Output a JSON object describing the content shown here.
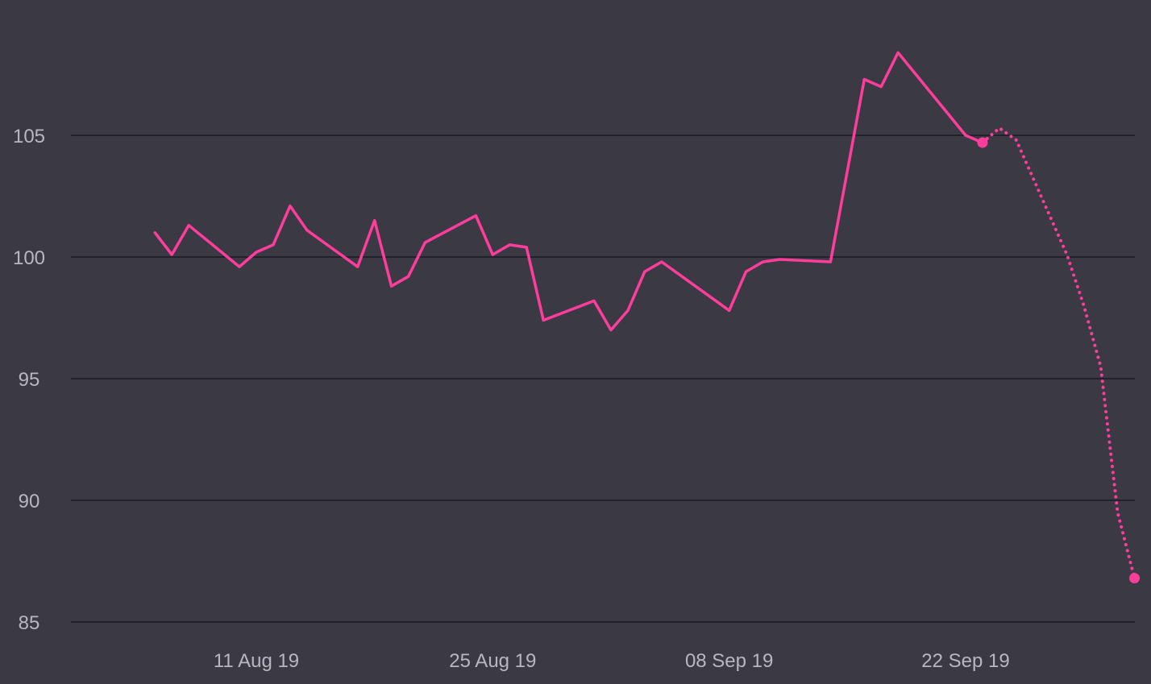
{
  "chart_data": {
    "type": "line",
    "title": "",
    "xlabel": "",
    "ylabel": "",
    "ylim": [
      85,
      109
    ],
    "xlim": [
      "2019-08-05",
      "2019-10-01"
    ],
    "y_ticks": [
      {
        "value": 85,
        "label": "85"
      },
      {
        "value": 90,
        "label": "90"
      },
      {
        "value": 95,
        "label": "95"
      },
      {
        "value": 100,
        "label": "100"
      },
      {
        "value": 105,
        "label": "105"
      }
    ],
    "x_ticks": [
      {
        "date": "2019-08-11",
        "label": "11 Aug 19"
      },
      {
        "date": "2019-08-25",
        "label": "25 Aug 19"
      },
      {
        "date": "2019-09-08",
        "label": "08 Sep 19"
      },
      {
        "date": "2019-09-22",
        "label": "22 Sep 19"
      }
    ],
    "grid": true,
    "legend": "none",
    "colors": {
      "background": "#3a3944",
      "grid": "#23222a",
      "series": "#ff3d9a",
      "tick_text": "#b8b6c2"
    },
    "series": [
      {
        "style": "solid",
        "points": [
          {
            "x": "2019-08-05",
            "y": 101.0
          },
          {
            "x": "2019-08-06",
            "y": 100.1
          },
          {
            "x": "2019-08-07",
            "y": 101.3
          },
          {
            "x": "2019-08-10",
            "y": 99.6
          },
          {
            "x": "2019-08-11",
            "y": 100.2
          },
          {
            "x": "2019-08-12",
            "y": 100.5
          },
          {
            "x": "2019-08-13",
            "y": 102.1
          },
          {
            "x": "2019-08-14",
            "y": 101.1
          },
          {
            "x": "2019-08-17",
            "y": 99.6
          },
          {
            "x": "2019-08-18",
            "y": 101.5
          },
          {
            "x": "2019-08-19",
            "y": 98.8
          },
          {
            "x": "2019-08-20",
            "y": 99.2
          },
          {
            "x": "2019-08-21",
            "y": 100.6
          },
          {
            "x": "2019-08-24",
            "y": 101.7
          },
          {
            "x": "2019-08-25",
            "y": 100.1
          },
          {
            "x": "2019-08-26",
            "y": 100.5
          },
          {
            "x": "2019-08-27",
            "y": 100.4
          },
          {
            "x": "2019-08-28",
            "y": 97.4
          },
          {
            "x": "2019-08-31",
            "y": 98.2
          },
          {
            "x": "2019-09-01",
            "y": 97.0
          },
          {
            "x": "2019-09-02",
            "y": 97.8
          },
          {
            "x": "2019-09-03",
            "y": 99.4
          },
          {
            "x": "2019-09-04",
            "y": 99.8
          },
          {
            "x": "2019-09-08",
            "y": 97.8
          },
          {
            "x": "2019-09-09",
            "y": 99.4
          },
          {
            "x": "2019-09-10",
            "y": 99.8
          },
          {
            "x": "2019-09-11",
            "y": 99.9
          },
          {
            "x": "2019-09-14",
            "y": 99.8
          },
          {
            "x": "2019-09-16",
            "y": 107.3
          },
          {
            "x": "2019-09-17",
            "y": 107.0
          },
          {
            "x": "2019-09-18",
            "y": 108.4
          },
          {
            "x": "2019-09-22",
            "y": 105.0
          },
          {
            "x": "2019-09-23",
            "y": 104.7
          }
        ]
      },
      {
        "style": "dotted",
        "points": [
          {
            "x": "2019-09-23",
            "y": 104.7
          },
          {
            "x": "2019-09-24",
            "y": 105.3
          },
          {
            "x": "2019-09-25",
            "y": 104.8
          },
          {
            "x": "2019-09-28",
            "y": 100.1
          },
          {
            "x": "2019-09-29",
            "y": 98.0
          },
          {
            "x": "2019-09-30",
            "y": 95.5
          },
          {
            "x": "2019-10-01",
            "y": 89.5
          },
          {
            "x": "2019-10-02",
            "y": 86.8
          }
        ]
      }
    ],
    "markers": [
      {
        "x": "2019-09-23",
        "y": 104.7
      },
      {
        "x": "2019-10-02",
        "y": 86.8
      }
    ]
  }
}
